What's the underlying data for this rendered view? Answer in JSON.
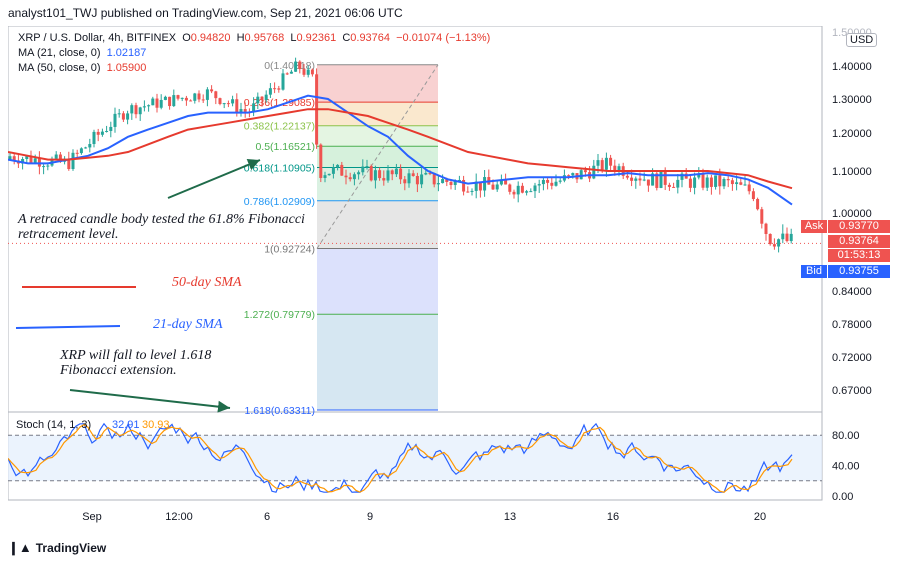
{
  "header": {
    "published_by": "analyst101_TWJ published on TradingView.com, Sep 21, 2021 06:06 UTC"
  },
  "legend": {
    "symbol": "XRP / U.S. Dollar, 4h, BITFINEX",
    "ohlc": [
      {
        "k": "O",
        "v": "0.94820"
      },
      {
        "k": "H",
        "v": "0.95768"
      },
      {
        "k": "L",
        "v": "0.92361"
      },
      {
        "k": "C",
        "v": "0.93764"
      }
    ],
    "change": "−0.01074 (−1.13%)",
    "ma21": {
      "label": "MA (21, close, 0)",
      "value": "1.02187",
      "color": "#2962ff"
    },
    "ma50": {
      "label": "MA (50, close, 0)",
      "value": "1.05900",
      "color": "#e63a2e"
    }
  },
  "currency": "USD",
  "price_tags": {
    "ask_label": "Ask",
    "ask_value": "0.93770",
    "last_value": "0.93764",
    "countdown": "01:53:13",
    "bid_label": "Bid",
    "bid_value": "0.93755"
  },
  "annotations": {
    "retrace": "A retraced candle body tested the 61.8% Fibonacci retracement level.",
    "sma50": "50-day SMA",
    "sma21": "21-day SMA",
    "fall": "XRP will fall to  level 1.618 Fibonacci extension."
  },
  "footer": {
    "brand": "TradingView"
  },
  "chart_data": [
    {
      "type": "candlestick",
      "title": "XRP / U.S. Dollar, 4h, BITFINEX",
      "y_ticks": [
        "1.40000",
        "1.30000",
        "1.20000",
        "1.10000",
        "1.00000",
        "0.84000",
        "0.78000",
        "0.72000",
        "0.67000"
      ],
      "y_top_partial": "1.50000",
      "x_ticks": [
        "Sep",
        "12:00",
        "6",
        "9",
        "13",
        "16",
        "20"
      ],
      "fib_levels": [
        {
          "ratio": "0",
          "price": "1.40318"
        },
        {
          "ratio": "0.236",
          "price": "1.29085"
        },
        {
          "ratio": "0.382",
          "price": "1.22137"
        },
        {
          "ratio": "0.5",
          "price": "1.16521"
        },
        {
          "ratio": "0.618",
          "price": "1.10905"
        },
        {
          "ratio": "0.786",
          "price": "1.02909"
        },
        {
          "ratio": "1",
          "price": "0.92724"
        },
        {
          "ratio": "1.272",
          "price": "0.79779"
        },
        {
          "ratio": "1.618",
          "price": "0.63311"
        }
      ],
      "series": [
        {
          "name": "MA (21, close, 0)",
          "color": "#2962ff",
          "points": [
            [
              0,
              1.13
            ],
            [
              20,
              1.12
            ],
            [
              40,
              1.12
            ],
            [
              60,
              1.13
            ],
            [
              80,
              1.14
            ],
            [
              100,
              1.16
            ],
            [
              120,
              1.19
            ],
            [
              140,
              1.21
            ],
            [
              160,
              1.23
            ],
            [
              180,
              1.25
            ],
            [
              200,
              1.26
            ],
            [
              220,
              1.26
            ],
            [
              240,
              1.26
            ],
            [
              260,
              1.27
            ],
            [
              280,
              1.29
            ],
            [
              300,
              1.31
            ],
            [
              320,
              1.3
            ],
            [
              340,
              1.26
            ],
            [
              360,
              1.22
            ],
            [
              380,
              1.19
            ],
            [
              400,
              1.14
            ],
            [
              420,
              1.1
            ],
            [
              440,
              1.08
            ],
            [
              460,
              1.07
            ],
            [
              480,
              1.075
            ],
            [
              500,
              1.08
            ],
            [
              520,
              1.085
            ],
            [
              540,
              1.085
            ],
            [
              560,
              1.085
            ],
            [
              580,
              1.09
            ],
            [
              600,
              1.09
            ],
            [
              620,
              1.095
            ],
            [
              640,
              1.09
            ],
            [
              660,
              1.09
            ],
            [
              680,
              1.09
            ],
            [
              700,
              1.095
            ],
            [
              720,
              1.09
            ],
            [
              740,
              1.08
            ],
            [
              760,
              1.06
            ],
            [
              784,
              1.02
            ]
          ]
        },
        {
          "name": "MA (50, close, 0)",
          "color": "#e63a2e",
          "points": [
            [
              0,
              1.15
            ],
            [
              20,
              1.14
            ],
            [
              40,
              1.13
            ],
            [
              60,
              1.13
            ],
            [
              80,
              1.135
            ],
            [
              100,
              1.14
            ],
            [
              120,
              1.15
            ],
            [
              140,
              1.17
            ],
            [
              160,
              1.19
            ],
            [
              180,
              1.21
            ],
            [
              200,
              1.22
            ],
            [
              220,
              1.23
            ],
            [
              240,
              1.24
            ],
            [
              260,
              1.25
            ],
            [
              280,
              1.26
            ],
            [
              300,
              1.27
            ],
            [
              320,
              1.27
            ],
            [
              340,
              1.26
            ],
            [
              360,
              1.25
            ],
            [
              380,
              1.23
            ],
            [
              400,
              1.21
            ],
            [
              420,
              1.19
            ],
            [
              440,
              1.17
            ],
            [
              460,
              1.15
            ],
            [
              480,
              1.14
            ],
            [
              500,
              1.13
            ],
            [
              520,
              1.12
            ],
            [
              540,
              1.115
            ],
            [
              560,
              1.11
            ],
            [
              580,
              1.105
            ],
            [
              600,
              1.1
            ],
            [
              620,
              1.1
            ],
            [
              640,
              1.1
            ],
            [
              660,
              1.1
            ],
            [
              680,
              1.1
            ],
            [
              700,
              1.1
            ],
            [
              720,
              1.095
            ],
            [
              740,
              1.09
            ],
            [
              760,
              1.075
            ],
            [
              784,
              1.059
            ]
          ]
        }
      ]
    },
    {
      "type": "line",
      "title": "Stoch (14, 1, 3)",
      "values_shown": [
        "32.91",
        "30.93"
      ],
      "y_ticks": [
        "80.00",
        "40.00",
        "0.00"
      ],
      "series": [
        {
          "name": "%K",
          "color": "#2962ff"
        },
        {
          "name": "%D",
          "color": "#ff9800"
        }
      ]
    }
  ]
}
